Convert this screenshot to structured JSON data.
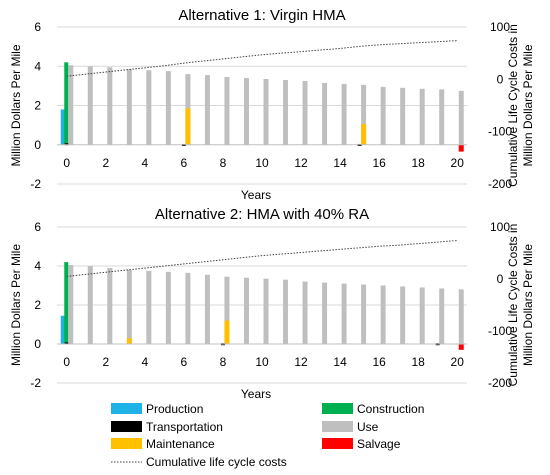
{
  "legend": [
    {
      "key": "production",
      "label": "Production",
      "color": "#1FB2E6",
      "type": "bar"
    },
    {
      "key": "construction",
      "label": "Construction",
      "color": "#00B050",
      "type": "bar"
    },
    {
      "key": "transportation",
      "label": "Transportation",
      "color": "#000000",
      "type": "bar"
    },
    {
      "key": "use",
      "label": "Use",
      "color": "#BFBFBF",
      "type": "bar"
    },
    {
      "key": "maintenance",
      "label": "Maintenance",
      "color": "#FFC000",
      "type": "bar"
    },
    {
      "key": "salvage",
      "label": "Salvage",
      "color": "#FF0000",
      "type": "bar"
    },
    {
      "key": "cumulative",
      "label": "Cumulative life cycle costs",
      "color": "#404040",
      "type": "dotted-line"
    }
  ],
  "chart_data": [
    {
      "type": "bar",
      "title": "Alternative 1: Virgin HMA",
      "xlabel": "Years",
      "ylabel": "Million Dollars Per Mile",
      "y2label": [
        "Cumulative Life Cycle Costs in",
        "Million Dollars Per Mile"
      ],
      "xlim": [
        -0.5,
        20.5
      ],
      "ylim": [
        -2,
        6
      ],
      "y2lim": [
        -200,
        100
      ],
      "xticks": [
        0,
        2,
        4,
        6,
        8,
        10,
        12,
        14,
        16,
        18,
        20
      ],
      "yticks": [
        -2,
        0,
        2,
        4,
        6
      ],
      "y2ticks": [
        -200,
        -100,
        0,
        100
      ],
      "grid": "horizontal",
      "x": [
        0,
        1,
        2,
        3,
        4,
        5,
        6,
        7,
        8,
        9,
        10,
        11,
        12,
        13,
        14,
        15,
        16,
        17,
        18,
        19,
        20
      ],
      "series": [
        {
          "name": "Production",
          "key": "production",
          "axis": "left",
          "values": [
            1.8,
            0,
            0,
            0,
            0,
            0,
            0,
            0,
            0,
            0,
            0,
            0,
            0,
            0,
            0,
            0,
            0,
            0,
            0,
            0,
            0
          ]
        },
        {
          "name": "Construction",
          "key": "construction",
          "axis": "left",
          "values": [
            4.2,
            0,
            0,
            0,
            0,
            0,
            0,
            0,
            0,
            0,
            0,
            0,
            0,
            0,
            0,
            0,
            0,
            0,
            0,
            0,
            0
          ]
        },
        {
          "name": "Transportation",
          "key": "transportation",
          "axis": "left",
          "values": [
            0.08,
            0,
            0,
            0,
            0,
            0,
            0.04,
            0,
            0,
            0,
            0,
            0,
            0,
            0,
            0,
            0.04,
            0,
            0,
            0,
            0,
            0
          ]
        },
        {
          "name": "Use",
          "key": "use",
          "axis": "left",
          "values": [
            4.05,
            4.0,
            3.95,
            3.85,
            3.8,
            3.75,
            3.6,
            3.55,
            3.45,
            3.4,
            3.35,
            3.3,
            3.25,
            3.15,
            3.1,
            3.05,
            2.95,
            2.9,
            2.85,
            2.82,
            2.75
          ]
        },
        {
          "name": "Maintenance",
          "key": "maintenance",
          "axis": "left",
          "values": [
            0,
            0,
            0,
            0,
            0,
            0,
            1.85,
            0,
            0,
            0,
            0,
            0,
            0,
            0,
            0,
            1.05,
            0,
            0,
            0,
            0,
            0
          ]
        },
        {
          "name": "Salvage",
          "key": "salvage",
          "axis": "left",
          "values": [
            0,
            0,
            0,
            0,
            0,
            0,
            0,
            0,
            0,
            0,
            0,
            0,
            0,
            0,
            0,
            0,
            0,
            0,
            0,
            0,
            -0.35
          ]
        },
        {
          "name": "Cumulative life cycle costs",
          "key": "cumulative",
          "axis": "right",
          "type": "line",
          "values": [
            6,
            10,
            14,
            18,
            22,
            26,
            31,
            35,
            39,
            43,
            47,
            50,
            53,
            56,
            59,
            63,
            66,
            68,
            70,
            72,
            74
          ]
        }
      ]
    },
    {
      "type": "bar",
      "title": "Alternative 2: HMA with 40% RA",
      "xlabel": "Years",
      "ylabel": "Million Dollars Per Mile",
      "y2label": [
        "Cumulative Life Cycle Costs in",
        "Million Dollars Per Mile"
      ],
      "xlim": [
        -0.5,
        20.5
      ],
      "ylim": [
        -2,
        6
      ],
      "y2lim": [
        -200,
        100
      ],
      "xticks": [
        0,
        2,
        4,
        6,
        8,
        10,
        12,
        14,
        16,
        18,
        20
      ],
      "yticks": [
        -2,
        0,
        2,
        4,
        6
      ],
      "y2ticks": [
        -200,
        -100,
        0,
        100
      ],
      "grid": "horizontal",
      "x": [
        0,
        1,
        2,
        3,
        4,
        5,
        6,
        7,
        8,
        9,
        10,
        11,
        12,
        13,
        14,
        15,
        16,
        17,
        18,
        19,
        20
      ],
      "series": [
        {
          "name": "Production",
          "key": "production",
          "axis": "left",
          "values": [
            1.45,
            0,
            0,
            0,
            0,
            0,
            0,
            0,
            0,
            0,
            0,
            0,
            0,
            0,
            0,
            0,
            0,
            0,
            0,
            0,
            0
          ]
        },
        {
          "name": "Construction",
          "key": "construction",
          "axis": "left",
          "values": [
            4.2,
            0,
            0,
            0,
            0,
            0,
            0,
            0,
            0,
            0,
            0,
            0,
            0,
            0,
            0,
            0,
            0,
            0,
            0,
            0,
            0
          ]
        },
        {
          "name": "Transportation",
          "key": "transportation",
          "axis": "left",
          "values": [
            0.08,
            0,
            0,
            0,
            0,
            0,
            0,
            0,
            0.04,
            0,
            0,
            0,
            0,
            0,
            0,
            0,
            0,
            0,
            0,
            0.04,
            0
          ]
        },
        {
          "name": "Use",
          "key": "use",
          "axis": "left",
          "values": [
            4.05,
            4.0,
            3.9,
            3.8,
            3.75,
            3.7,
            3.65,
            3.55,
            3.45,
            3.4,
            3.35,
            3.3,
            3.2,
            3.15,
            3.1,
            3.05,
            3.0,
            2.95,
            2.9,
            2.85,
            2.8
          ]
        },
        {
          "name": "Maintenance",
          "key": "maintenance",
          "axis": "left",
          "values": [
            0,
            0,
            0,
            0.3,
            0,
            0,
            0,
            0,
            1.2,
            0,
            0,
            0,
            0,
            0,
            0,
            0,
            0,
            0,
            0,
            0,
            0
          ]
        },
        {
          "name": "Salvage",
          "key": "salvage",
          "axis": "left",
          "values": [
            0,
            0,
            0,
            0,
            0,
            0,
            0,
            0,
            0,
            0,
            0,
            0,
            0,
            0,
            0,
            0,
            0,
            0,
            0,
            0,
            -0.3
          ]
        },
        {
          "name": "Cumulative life cycle costs",
          "key": "cumulative",
          "axis": "right",
          "type": "line",
          "values": [
            5,
            9,
            13,
            17,
            21,
            25,
            29,
            33,
            37,
            41,
            45,
            48,
            51,
            54,
            57,
            60,
            63,
            65,
            68,
            71,
            74
          ]
        }
      ]
    }
  ]
}
